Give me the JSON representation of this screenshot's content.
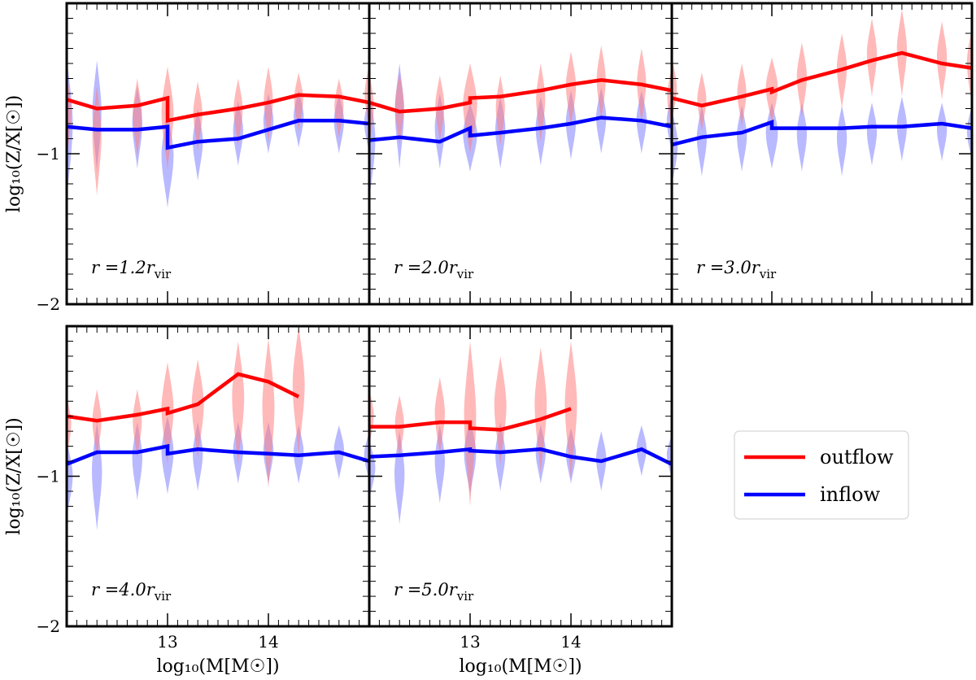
{
  "chart_data": {
    "type": "line",
    "xlabel": "log₁₀(M[M☉])",
    "ylabel": "log₁₀(Z/X[☉])",
    "xlim": [
      12.0,
      15.0
    ],
    "ylim": [
      -2.0,
      0.0
    ],
    "x_ticks": [
      13,
      14
    ],
    "y_ticks": [
      -2,
      -1
    ],
    "legend": {
      "placement": "right",
      "entries": [
        {
          "label": "outflow",
          "color": "#ff0000"
        },
        {
          "label": "inflow",
          "color": "#0000ff"
        }
      ]
    },
    "colors": {
      "outflow_line": "#ff0000",
      "inflow_line": "#0000ff",
      "outflow_violin": "#ff8080",
      "inflow_violin": "#8080ff"
    },
    "panels": [
      {
        "label": "r =1.2r",
        "label_sub": "vir",
        "outflow": {
          "x": [
            12.0,
            12.3,
            12.7,
            13.0,
            13.0,
            13.3,
            13.7,
            14.0,
            14.3,
            14.7,
            15.0
          ],
          "y": [
            -0.64,
            -0.7,
            -0.68,
            -0.63,
            -0.78,
            -0.74,
            -0.7,
            -0.66,
            -0.61,
            -0.62,
            -0.66
          ]
        },
        "inflow": {
          "x": [
            12.0,
            12.3,
            12.7,
            13.0,
            13.0,
            13.3,
            13.7,
            14.0,
            14.3,
            14.7,
            15.0
          ],
          "y": [
            -0.82,
            -0.84,
            -0.84,
            -0.82,
            -0.96,
            -0.92,
            -0.9,
            -0.84,
            -0.78,
            -0.78,
            -0.8
          ]
        },
        "violins": {
          "outflow": [
            {
              "x": 12.0,
              "low": -1.05,
              "high": -0.46,
              "width": 0.09
            },
            {
              "x": 12.3,
              "low": -1.28,
              "high": -0.55,
              "width": 0.09
            },
            {
              "x": 12.7,
              "low": -1.02,
              "high": -0.5,
              "width": 0.09
            },
            {
              "x": 13.0,
              "low": -1.1,
              "high": -0.42,
              "width": 0.12
            },
            {
              "x": 13.3,
              "low": -0.98,
              "high": -0.52,
              "width": 0.09
            },
            {
              "x": 13.7,
              "low": -0.95,
              "high": -0.5,
              "width": 0.09
            },
            {
              "x": 14.0,
              "low": -0.92,
              "high": -0.42,
              "width": 0.09
            },
            {
              "x": 14.3,
              "low": -0.85,
              "high": -0.46,
              "width": 0.09
            },
            {
              "x": 14.7,
              "low": -0.9,
              "high": -0.5,
              "width": 0.09
            },
            {
              "x": 15.0,
              "low": -0.85,
              "high": -0.4,
              "width": 0.09
            }
          ],
          "inflow": [
            {
              "x": 12.0,
              "low": -1.32,
              "high": -0.36,
              "width": 0.12
            },
            {
              "x": 12.3,
              "low": -1.12,
              "high": -0.38,
              "width": 0.09
            },
            {
              "x": 12.7,
              "low": -1.1,
              "high": -0.55,
              "width": 0.1
            },
            {
              "x": 13.0,
              "low": -1.36,
              "high": -0.72,
              "width": 0.12
            },
            {
              "x": 13.3,
              "low": -1.18,
              "high": -0.7,
              "width": 0.1
            },
            {
              "x": 13.7,
              "low": -1.08,
              "high": -0.65,
              "width": 0.1
            },
            {
              "x": 14.0,
              "low": -1.0,
              "high": -0.6,
              "width": 0.1
            },
            {
              "x": 14.3,
              "low": -0.96,
              "high": -0.58,
              "width": 0.1
            },
            {
              "x": 14.7,
              "low": -1.0,
              "high": -0.6,
              "width": 0.1
            },
            {
              "x": 15.0,
              "low": -1.0,
              "high": -0.62,
              "width": 0.1
            }
          ]
        }
      },
      {
        "label": "r =2.0r",
        "label_sub": "vir",
        "outflow": {
          "x": [
            12.0,
            12.3,
            12.7,
            13.0,
            13.0,
            13.3,
            13.7,
            14.0,
            14.3,
            14.7,
            15.0
          ],
          "y": [
            -0.66,
            -0.72,
            -0.7,
            -0.66,
            -0.63,
            -0.62,
            -0.58,
            -0.54,
            -0.51,
            -0.54,
            -0.58
          ]
        },
        "inflow": {
          "x": [
            12.0,
            12.3,
            12.7,
            13.0,
            13.0,
            13.3,
            13.7,
            14.0,
            14.3,
            14.7,
            15.0
          ],
          "y": [
            -0.91,
            -0.89,
            -0.92,
            -0.83,
            -0.88,
            -0.86,
            -0.83,
            -0.8,
            -0.76,
            -0.78,
            -0.82
          ]
        },
        "violins": {
          "outflow": [
            {
              "x": 12.0,
              "low": -0.95,
              "high": -0.46,
              "width": 0.09
            },
            {
              "x": 12.3,
              "low": -0.94,
              "high": -0.46,
              "width": 0.09
            },
            {
              "x": 12.7,
              "low": -0.92,
              "high": -0.48,
              "width": 0.09
            },
            {
              "x": 13.0,
              "low": -1.0,
              "high": -0.4,
              "width": 0.14
            },
            {
              "x": 13.3,
              "low": -0.95,
              "high": -0.48,
              "width": 0.09
            },
            {
              "x": 13.7,
              "low": -0.92,
              "high": -0.4,
              "width": 0.09
            },
            {
              "x": 14.0,
              "low": -0.82,
              "high": -0.32,
              "width": 0.1
            },
            {
              "x": 14.3,
              "low": -0.78,
              "high": -0.28,
              "width": 0.09
            },
            {
              "x": 14.7,
              "low": -0.8,
              "high": -0.3,
              "width": 0.09
            },
            {
              "x": 15.0,
              "low": -0.86,
              "high": -0.42,
              "width": 0.09
            }
          ],
          "inflow": [
            {
              "x": 12.0,
              "low": -1.32,
              "high": -0.56,
              "width": 0.12
            },
            {
              "x": 12.3,
              "low": -1.1,
              "high": -0.4,
              "width": 0.09
            },
            {
              "x": 12.7,
              "low": -1.1,
              "high": -0.6,
              "width": 0.1
            },
            {
              "x": 13.0,
              "low": -1.12,
              "high": -0.66,
              "width": 0.14
            },
            {
              "x": 13.3,
              "low": -1.1,
              "high": -0.62,
              "width": 0.1
            },
            {
              "x": 13.7,
              "low": -1.08,
              "high": -0.62,
              "width": 0.1
            },
            {
              "x": 14.0,
              "low": -1.04,
              "high": -0.58,
              "width": 0.1
            },
            {
              "x": 14.3,
              "low": -1.0,
              "high": -0.56,
              "width": 0.1
            },
            {
              "x": 14.7,
              "low": -1.0,
              "high": -0.58,
              "width": 0.1
            },
            {
              "x": 15.0,
              "low": -1.0,
              "high": -0.6,
              "width": 0.1
            }
          ]
        }
      },
      {
        "label": "r =3.0r",
        "label_sub": "vir",
        "outflow": {
          "x": [
            12.0,
            12.3,
            12.7,
            13.0,
            13.0,
            13.3,
            13.7,
            14.0,
            14.3,
            14.7,
            15.0
          ],
          "y": [
            -0.63,
            -0.68,
            -0.62,
            -0.57,
            -0.59,
            -0.51,
            -0.44,
            -0.38,
            -0.33,
            -0.4,
            -0.43
          ]
        },
        "inflow": {
          "x": [
            12.0,
            12.3,
            12.7,
            13.0,
            13.0,
            13.3,
            13.7,
            14.0,
            14.3,
            14.7,
            15.0
          ],
          "y": [
            -0.94,
            -0.89,
            -0.86,
            -0.79,
            -0.83,
            -0.83,
            -0.83,
            -0.82,
            -0.82,
            -0.8,
            -0.83
          ]
        },
        "violins": {
          "outflow": [
            {
              "x": 12.0,
              "low": -0.8,
              "high": -0.36,
              "width": 0.1
            },
            {
              "x": 12.3,
              "low": -0.85,
              "high": -0.46,
              "width": 0.09
            },
            {
              "x": 12.7,
              "low": -0.82,
              "high": -0.4,
              "width": 0.09
            },
            {
              "x": 13.0,
              "low": -0.8,
              "high": -0.36,
              "width": 0.12
            },
            {
              "x": 13.3,
              "low": -0.76,
              "high": -0.26,
              "width": 0.1
            },
            {
              "x": 13.7,
              "low": -0.7,
              "high": -0.2,
              "width": 0.1
            },
            {
              "x": 14.0,
              "low": -0.62,
              "high": -0.1,
              "width": 0.1
            },
            {
              "x": 14.3,
              "low": -0.62,
              "high": -0.04,
              "width": 0.1
            },
            {
              "x": 14.7,
              "low": -0.64,
              "high": -0.12,
              "width": 0.1
            },
            {
              "x": 15.0,
              "low": -0.68,
              "high": -0.16,
              "width": 0.1
            }
          ],
          "inflow": [
            {
              "x": 12.0,
              "low": -1.22,
              "high": -0.7,
              "width": 0.12
            },
            {
              "x": 12.3,
              "low": -1.15,
              "high": -0.68,
              "width": 0.1
            },
            {
              "x": 12.7,
              "low": -1.12,
              "high": -0.68,
              "width": 0.1
            },
            {
              "x": 13.0,
              "low": -1.1,
              "high": -0.66,
              "width": 0.12
            },
            {
              "x": 13.3,
              "low": -1.12,
              "high": -0.66,
              "width": 0.1
            },
            {
              "x": 13.7,
              "low": -1.15,
              "high": -0.68,
              "width": 0.1
            },
            {
              "x": 14.0,
              "low": -1.08,
              "high": -0.66,
              "width": 0.1
            },
            {
              "x": 14.3,
              "low": -1.05,
              "high": -0.62,
              "width": 0.1
            },
            {
              "x": 14.7,
              "low": -1.05,
              "high": -0.66,
              "width": 0.1
            },
            {
              "x": 15.0,
              "low": -1.05,
              "high": -0.68,
              "width": 0.1
            }
          ]
        }
      },
      {
        "label": "r =4.0r",
        "label_sub": "vir",
        "outflow": {
          "x": [
            12.0,
            12.3,
            12.7,
            13.0,
            13.0,
            13.3,
            13.7,
            14.0,
            14.3
          ],
          "y": [
            -0.6,
            -0.63,
            -0.59,
            -0.55,
            -0.58,
            -0.52,
            -0.32,
            -0.37,
            -0.47
          ]
        },
        "inflow": {
          "x": [
            12.0,
            12.3,
            12.7,
            13.0,
            13.0,
            13.3,
            13.7,
            14.0,
            14.3,
            14.7,
            15.0
          ],
          "y": [
            -0.92,
            -0.84,
            -0.84,
            -0.8,
            -0.85,
            -0.82,
            -0.84,
            -0.85,
            -0.86,
            -0.84,
            -0.9
          ]
        },
        "violins": {
          "outflow": [
            {
              "x": 12.0,
              "low": -0.88,
              "high": -0.46,
              "width": 0.09
            },
            {
              "x": 12.3,
              "low": -0.88,
              "high": -0.42,
              "width": 0.09
            },
            {
              "x": 12.7,
              "low": -0.88,
              "high": -0.42,
              "width": 0.09
            },
            {
              "x": 13.0,
              "low": -0.92,
              "high": -0.24,
              "width": 0.12
            },
            {
              "x": 13.3,
              "low": -0.88,
              "high": -0.22,
              "width": 0.12
            },
            {
              "x": 13.7,
              "low": -0.92,
              "high": -0.1,
              "width": 0.12
            },
            {
              "x": 14.0,
              "low": -1.08,
              "high": -0.08,
              "width": 0.12
            },
            {
              "x": 14.3,
              "low": -0.86,
              "high": 0.0,
              "width": 0.12
            }
          ],
          "inflow": [
            {
              "x": 12.0,
              "low": -1.28,
              "high": -0.76,
              "width": 0.12
            },
            {
              "x": 12.3,
              "low": -1.36,
              "high": -0.64,
              "width": 0.1
            },
            {
              "x": 12.7,
              "low": -1.16,
              "high": -0.64,
              "width": 0.1
            },
            {
              "x": 13.0,
              "low": -1.12,
              "high": -0.6,
              "width": 0.12
            },
            {
              "x": 13.3,
              "low": -1.1,
              "high": -0.64,
              "width": 0.1
            },
            {
              "x": 13.7,
              "low": -1.05,
              "high": -0.64,
              "width": 0.1
            },
            {
              "x": 14.0,
              "low": -1.05,
              "high": -0.64,
              "width": 0.1
            },
            {
              "x": 14.3,
              "low": -1.05,
              "high": -0.66,
              "width": 0.1
            },
            {
              "x": 14.7,
              "low": -1.02,
              "high": -0.66,
              "width": 0.1
            },
            {
              "x": 15.0,
              "low": -1.04,
              "high": -0.7,
              "width": 0.1
            }
          ]
        }
      },
      {
        "label": "r =5.0r",
        "label_sub": "vir",
        "outflow": {
          "x": [
            12.0,
            12.3,
            12.7,
            13.0,
            13.0,
            13.3,
            13.7,
            14.0
          ],
          "y": [
            -0.67,
            -0.67,
            -0.64,
            -0.64,
            -0.68,
            -0.69,
            -0.62,
            -0.55
          ]
        },
        "inflow": {
          "x": [
            12.0,
            12.3,
            12.7,
            13.0,
            13.0,
            13.3,
            13.7,
            14.0,
            14.3,
            14.7,
            15.0
          ],
          "y": [
            -0.87,
            -0.86,
            -0.84,
            -0.82,
            -0.83,
            -0.84,
            -0.82,
            -0.87,
            -0.9,
            -0.82,
            -0.92
          ]
        },
        "violins": {
          "outflow": [
            {
              "x": 12.0,
              "low": -0.8,
              "high": -0.42,
              "width": 0.09
            },
            {
              "x": 12.3,
              "low": -0.88,
              "high": -0.46,
              "width": 0.09
            },
            {
              "x": 12.7,
              "low": -0.86,
              "high": -0.34,
              "width": 0.1
            },
            {
              "x": 13.0,
              "low": -1.2,
              "high": -0.1,
              "width": 0.12
            },
            {
              "x": 13.3,
              "low": -0.92,
              "high": -0.2,
              "width": 0.12
            },
            {
              "x": 13.7,
              "low": -0.98,
              "high": -0.14,
              "width": 0.12
            },
            {
              "x": 14.0,
              "low": -1.02,
              "high": -0.1,
              "width": 0.12
            }
          ],
          "inflow": [
            {
              "x": 12.0,
              "low": -1.16,
              "high": -0.76,
              "width": 0.12
            },
            {
              "x": 12.3,
              "low": -1.32,
              "high": -0.7,
              "width": 0.1
            },
            {
              "x": 12.7,
              "low": -1.18,
              "high": -0.66,
              "width": 0.1
            },
            {
              "x": 13.0,
              "low": -1.12,
              "high": -0.62,
              "width": 0.12
            },
            {
              "x": 13.3,
              "low": -1.1,
              "high": -0.64,
              "width": 0.1
            },
            {
              "x": 13.7,
              "low": -1.05,
              "high": -0.66,
              "width": 0.1
            },
            {
              "x": 14.0,
              "low": -1.05,
              "high": -0.68,
              "width": 0.1
            },
            {
              "x": 14.3,
              "low": -1.1,
              "high": -0.7,
              "width": 0.1
            },
            {
              "x": 14.7,
              "low": -1.0,
              "high": -0.66,
              "width": 0.1
            },
            {
              "x": 15.0,
              "low": -1.02,
              "high": -0.72,
              "width": 0.1
            }
          ]
        }
      }
    ]
  }
}
